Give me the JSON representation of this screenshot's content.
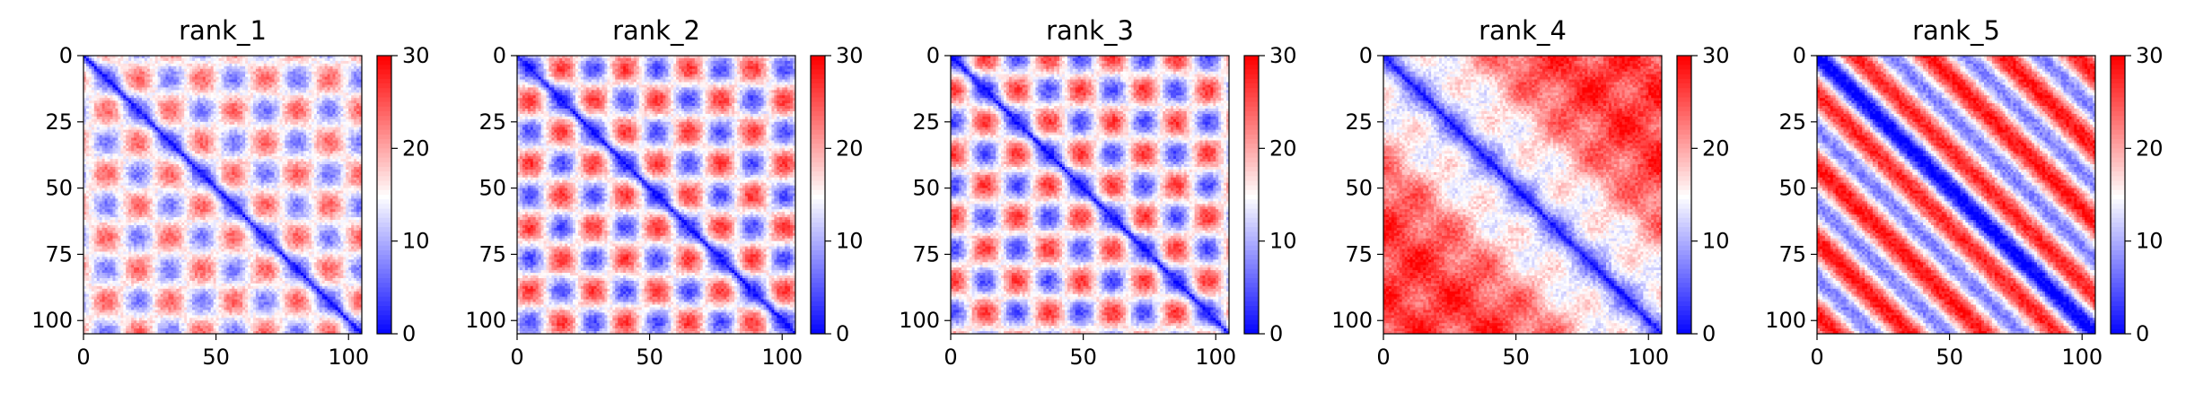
{
  "chart_data": [
    {
      "type": "heatmap",
      "title": "rank_1",
      "pattern": "block_offdiag",
      "xlim": [
        0,
        105
      ],
      "ylim": [
        0,
        105
      ],
      "xticks": [
        "0",
        "50",
        "100"
      ],
      "yticks": [
        "0",
        "25",
        "50",
        "75",
        "100"
      ],
      "colorbar": {
        "range": [
          0,
          30
        ],
        "ticks": [
          "0",
          "10",
          "20",
          "30"
        ],
        "colormap": "bwr"
      }
    },
    {
      "type": "heatmap",
      "title": "rank_2",
      "pattern": "block_offdiag_strong",
      "xlim": [
        0,
        105
      ],
      "ylim": [
        0,
        105
      ],
      "xticks": [
        "0",
        "50",
        "100"
      ],
      "yticks": [
        "0",
        "25",
        "50",
        "75",
        "100"
      ],
      "colorbar": {
        "range": [
          0,
          30
        ],
        "ticks": [
          "0",
          "10",
          "20",
          "30"
        ],
        "colormap": "bwr"
      }
    },
    {
      "type": "heatmap",
      "title": "rank_3",
      "pattern": "block_offdiag_strong",
      "xlim": [
        0,
        105
      ],
      "ylim": [
        0,
        105
      ],
      "xticks": [
        "0",
        "50",
        "100"
      ],
      "yticks": [
        "0",
        "25",
        "50",
        "75",
        "100"
      ],
      "colorbar": {
        "range": [
          0,
          30
        ],
        "ticks": [
          "0",
          "10",
          "20",
          "30"
        ],
        "colormap": "bwr"
      }
    },
    {
      "type": "heatmap",
      "title": "rank_4",
      "pattern": "diagonal_gradient",
      "xlim": [
        0,
        105
      ],
      "ylim": [
        0,
        105
      ],
      "xticks": [
        "0",
        "50",
        "100"
      ],
      "yticks": [
        "0",
        "25",
        "50",
        "75",
        "100"
      ],
      "colorbar": {
        "range": [
          0,
          30
        ],
        "ticks": [
          "0",
          "10",
          "20",
          "30"
        ],
        "colormap": "bwr"
      }
    },
    {
      "type": "heatmap",
      "title": "rank_5",
      "pattern": "parallel_bands",
      "xlim": [
        0,
        105
      ],
      "ylim": [
        0,
        105
      ],
      "xticks": [
        "0",
        "50",
        "100"
      ],
      "yticks": [
        "0",
        "25",
        "50",
        "75",
        "100"
      ],
      "colorbar": {
        "range": [
          0,
          30
        ],
        "ticks": [
          "0",
          "10",
          "20",
          "30"
        ],
        "colormap": "bwr"
      }
    }
  ]
}
